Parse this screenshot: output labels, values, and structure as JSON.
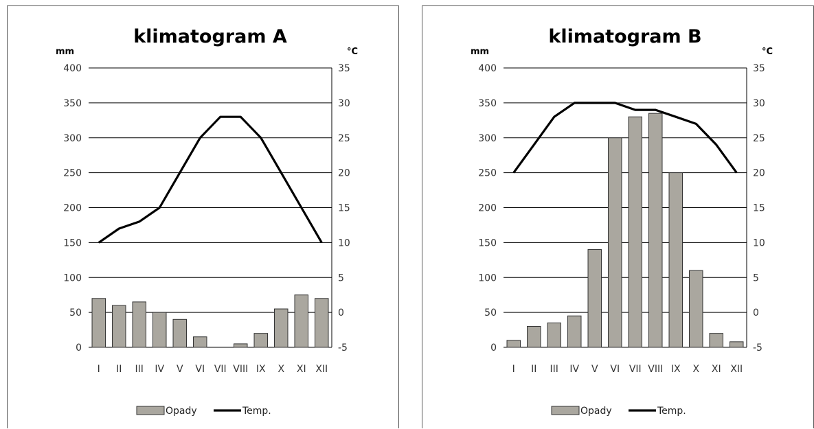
{
  "chart_data": [
    {
      "type": "bar+line",
      "title": "klimatogram A",
      "left_axis_label": "mm",
      "right_axis_label": "°C",
      "categories": [
        "I",
        "II",
        "III",
        "IV",
        "V",
        "VI",
        "VII",
        "VIII",
        "IX",
        "X",
        "XI",
        "XII"
      ],
      "left_ylim": [
        0,
        400
      ],
      "left_ticks": [
        "400",
        "350",
        "300",
        "250",
        "200",
        "150",
        "100",
        "50",
        "0"
      ],
      "right_ylim": [
        -5,
        35
      ],
      "right_ticks": [
        "35",
        "30",
        "25",
        "20",
        "15",
        "10",
        "5",
        "0",
        "-5"
      ],
      "grid": true,
      "legend_position": "bottom",
      "series": [
        {
          "name": "Opady",
          "kind": "bar",
          "axis": "left",
          "color": "#aaa79f",
          "values": [
            70,
            60,
            65,
            50,
            40,
            15,
            0,
            5,
            20,
            55,
            75,
            70
          ]
        },
        {
          "name": "Temp.",
          "kind": "line",
          "axis": "right",
          "color": "#000000",
          "values": [
            10,
            12,
            13,
            15,
            20,
            25,
            28,
            28,
            25,
            20,
            15,
            10
          ]
        }
      ]
    },
    {
      "type": "bar+line",
      "title": "klimatogram B",
      "left_axis_label": "mm",
      "right_axis_label": "°C",
      "categories": [
        "I",
        "II",
        "III",
        "IV",
        "V",
        "VI",
        "VII",
        "VIII",
        "IX",
        "X",
        "XI",
        "XII"
      ],
      "left_ylim": [
        0,
        400
      ],
      "left_ticks": [
        "400",
        "350",
        "300",
        "250",
        "200",
        "150",
        "100",
        "50",
        "0"
      ],
      "right_ylim": [
        -5,
        35
      ],
      "right_ticks": [
        "35",
        "30",
        "25",
        "20",
        "15",
        "10",
        "5",
        "0",
        "-5"
      ],
      "grid": true,
      "legend_position": "bottom",
      "series": [
        {
          "name": "Opady",
          "kind": "bar",
          "axis": "left",
          "color": "#aaa79f",
          "values": [
            10,
            30,
            35,
            45,
            140,
            300,
            330,
            335,
            250,
            110,
            20,
            8
          ]
        },
        {
          "name": "Temp.",
          "kind": "line",
          "axis": "right",
          "color": "#000000",
          "values": [
            20,
            24,
            28,
            30,
            30,
            30,
            29,
            29,
            28,
            27,
            24,
            20
          ]
        }
      ]
    }
  ]
}
